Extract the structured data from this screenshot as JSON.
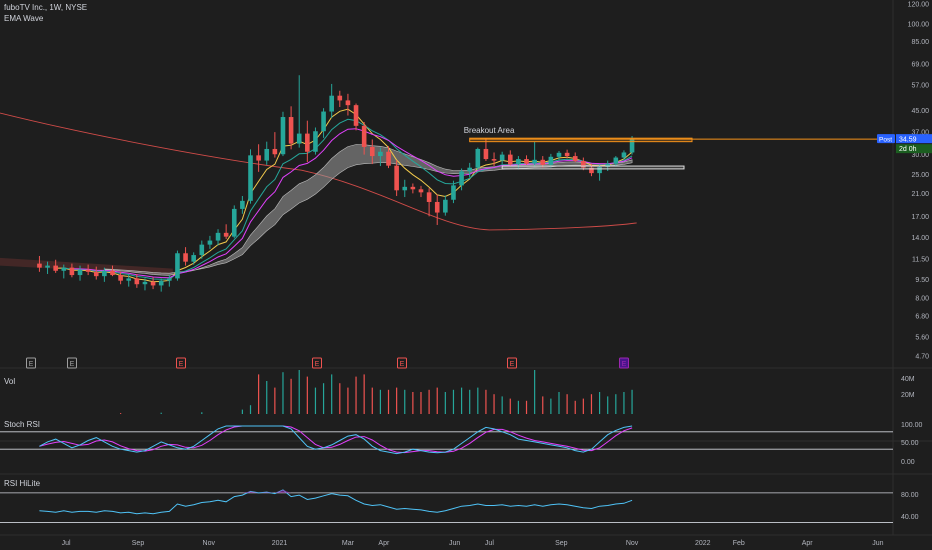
{
  "header": {
    "symbol_line": "fuboTV Inc., 1W, NYSE",
    "indicator": "EMA Wave"
  },
  "annotation": {
    "breakout_label": "Breakout Area"
  },
  "price_badges": {
    "post_label": "Post",
    "last_price": "34.59",
    "countdown": "2d 0h"
  },
  "panes": {
    "vol_label": "Vol",
    "stoch_label": "Stoch RSI",
    "rsi_label": "RSI HiLite"
  },
  "price_axis_ticks": [
    "120.00",
    "100.00",
    "85.00",
    "69.00",
    "57.00",
    "45.00",
    "37.00",
    "30.00",
    "25.00",
    "21.00",
    "17.00",
    "14.00",
    "11.50",
    "9.50",
    "8.00",
    "6.80",
    "5.60",
    "4.70"
  ],
  "vol_axis_ticks": [
    "40M",
    "20M"
  ],
  "stoch_axis_ticks": [
    "100.00",
    "50.00",
    "0.00"
  ],
  "rsi_axis_ticks": [
    "80.00",
    "40.00"
  ],
  "time_axis_ticks": [
    "Jul",
    "Sep",
    "Nov",
    "2021",
    "Mar",
    "Apr",
    "Jun",
    "Jul",
    "Sep",
    "Nov",
    "2022",
    "Feb",
    "Apr",
    "Jun"
  ],
  "events": [
    "E",
    "E",
    "E",
    "E",
    "E",
    "E",
    "E"
  ],
  "colors": {
    "up": "#26a69a",
    "down": "#ef5350",
    "breakout": "#f7931a",
    "ema_fast": "#f2c94c",
    "ema_mid": "#26a69a",
    "ema_slow": "#e040fb",
    "ma_long": "#ef5350",
    "stoch_k": "#4fc3f7",
    "stoch_d": "#e040fb",
    "rsi": "#4fc3f7"
  },
  "chart_data": {
    "type": "candlestick",
    "timeframe": "1W",
    "y_scale": "log",
    "ylim": [
      4.5,
      125
    ],
    "x_range": [
      "2020-06-08",
      "2022-06-13"
    ],
    "candles": [
      {
        "d": "2020-06-08",
        "o": 11.0,
        "h": 11.8,
        "l": 10.2,
        "c": 10.6
      },
      {
        "d": "2020-06-15",
        "o": 10.6,
        "h": 11.2,
        "l": 10.0,
        "c": 10.8
      },
      {
        "d": "2020-06-22",
        "o": 10.8,
        "h": 11.4,
        "l": 10.1,
        "c": 10.3
      },
      {
        "d": "2020-06-29",
        "o": 10.3,
        "h": 10.9,
        "l": 9.6,
        "c": 10.6
      },
      {
        "d": "2020-07-06",
        "o": 10.6,
        "h": 11.0,
        "l": 9.7,
        "c": 9.9
      },
      {
        "d": "2020-07-13",
        "o": 9.9,
        "h": 10.8,
        "l": 9.4,
        "c": 10.4
      },
      {
        "d": "2020-07-20",
        "o": 10.4,
        "h": 10.9,
        "l": 9.9,
        "c": 10.2
      },
      {
        "d": "2020-07-27",
        "o": 10.2,
        "h": 10.7,
        "l": 9.5,
        "c": 9.8
      },
      {
        "d": "2020-08-03",
        "o": 9.8,
        "h": 10.6,
        "l": 9.3,
        "c": 10.3
      },
      {
        "d": "2020-08-10",
        "o": 10.3,
        "h": 10.8,
        "l": 9.8,
        "c": 9.9
      },
      {
        "d": "2020-08-17",
        "o": 9.9,
        "h": 10.2,
        "l": 9.1,
        "c": 9.4
      },
      {
        "d": "2020-08-24",
        "o": 9.4,
        "h": 9.9,
        "l": 8.9,
        "c": 9.6
      },
      {
        "d": "2020-08-31",
        "o": 9.6,
        "h": 10.0,
        "l": 8.8,
        "c": 9.1
      },
      {
        "d": "2020-09-07",
        "o": 9.1,
        "h": 9.6,
        "l": 8.6,
        "c": 9.3
      },
      {
        "d": "2020-09-14",
        "o": 9.3,
        "h": 9.7,
        "l": 8.7,
        "c": 9.0
      },
      {
        "d": "2020-09-21",
        "o": 9.0,
        "h": 9.6,
        "l": 8.5,
        "c": 9.4
      },
      {
        "d": "2020-09-28",
        "o": 9.4,
        "h": 9.9,
        "l": 8.9,
        "c": 9.6
      },
      {
        "d": "2020-10-05",
        "o": 9.6,
        "h": 12.4,
        "l": 9.4,
        "c": 12.1
      },
      {
        "d": "2020-10-12",
        "o": 12.1,
        "h": 12.8,
        "l": 10.8,
        "c": 11.2
      },
      {
        "d": "2020-10-19",
        "o": 11.2,
        "h": 12.2,
        "l": 10.9,
        "c": 11.9
      },
      {
        "d": "2020-10-26",
        "o": 11.9,
        "h": 13.6,
        "l": 11.5,
        "c": 13.1
      },
      {
        "d": "2020-11-02",
        "o": 13.1,
        "h": 14.2,
        "l": 12.6,
        "c": 13.6
      },
      {
        "d": "2020-11-09",
        "o": 13.6,
        "h": 15.1,
        "l": 13.0,
        "c": 14.6
      },
      {
        "d": "2020-11-16",
        "o": 14.6,
        "h": 15.8,
        "l": 13.8,
        "c": 14.1
      },
      {
        "d": "2020-11-23",
        "o": 14.1,
        "h": 18.8,
        "l": 13.9,
        "c": 18.2
      },
      {
        "d": "2020-11-30",
        "o": 18.2,
        "h": 20.5,
        "l": 17.4,
        "c": 19.6
      },
      {
        "d": "2020-12-07",
        "o": 19.6,
        "h": 31.5,
        "l": 19.1,
        "c": 29.8
      },
      {
        "d": "2020-12-14",
        "o": 29.8,
        "h": 33.0,
        "l": 25.6,
        "c": 28.4
      },
      {
        "d": "2020-12-21",
        "o": 28.4,
        "h": 33.8,
        "l": 27.3,
        "c": 31.6
      },
      {
        "d": "2020-12-28",
        "o": 31.6,
        "h": 36.9,
        "l": 29.2,
        "c": 30.1
      },
      {
        "d": "2021-01-04",
        "o": 30.1,
        "h": 44.5,
        "l": 29.6,
        "c": 42.4
      },
      {
        "d": "2021-01-11",
        "o": 42.4,
        "h": 46.8,
        "l": 31.5,
        "c": 33.2
      },
      {
        "d": "2021-01-18",
        "o": 33.2,
        "h": 62.3,
        "l": 32.0,
        "c": 36.4
      },
      {
        "d": "2021-01-25",
        "o": 36.4,
        "h": 41.0,
        "l": 28.0,
        "c": 30.8
      },
      {
        "d": "2021-02-01",
        "o": 30.8,
        "h": 38.5,
        "l": 30.0,
        "c": 37.2
      },
      {
        "d": "2021-02-08",
        "o": 37.2,
        "h": 46.0,
        "l": 35.0,
        "c": 44.6
      },
      {
        "d": "2021-02-15",
        "o": 44.6,
        "h": 57.5,
        "l": 42.0,
        "c": 51.6
      },
      {
        "d": "2021-02-22",
        "o": 51.6,
        "h": 54.0,
        "l": 46.5,
        "c": 49.4
      },
      {
        "d": "2021-03-01",
        "o": 49.4,
        "h": 52.5,
        "l": 43.0,
        "c": 47.3
      },
      {
        "d": "2021-03-08",
        "o": 47.3,
        "h": 48.0,
        "l": 37.5,
        "c": 39.1
      },
      {
        "d": "2021-03-15",
        "o": 39.1,
        "h": 40.5,
        "l": 30.0,
        "c": 32.2
      },
      {
        "d": "2021-03-22",
        "o": 32.2,
        "h": 34.5,
        "l": 27.5,
        "c": 29.6
      },
      {
        "d": "2021-03-29",
        "o": 29.6,
        "h": 32.0,
        "l": 27.0,
        "c": 30.8
      },
      {
        "d": "2021-04-05",
        "o": 30.8,
        "h": 32.4,
        "l": 26.5,
        "c": 27.1
      },
      {
        "d": "2021-04-12",
        "o": 27.1,
        "h": 28.5,
        "l": 20.5,
        "c": 21.6
      },
      {
        "d": "2021-04-19",
        "o": 21.6,
        "h": 23.8,
        "l": 20.3,
        "c": 22.3
      },
      {
        "d": "2021-04-26",
        "o": 22.3,
        "h": 23.0,
        "l": 21.0,
        "c": 21.8
      },
      {
        "d": "2021-05-03",
        "o": 21.8,
        "h": 22.5,
        "l": 20.3,
        "c": 21.2
      },
      {
        "d": "2021-05-10",
        "o": 21.2,
        "h": 22.0,
        "l": 17.0,
        "c": 19.4
      },
      {
        "d": "2021-05-17",
        "o": 19.4,
        "h": 20.8,
        "l": 15.7,
        "c": 17.6
      },
      {
        "d": "2021-05-24",
        "o": 17.6,
        "h": 20.6,
        "l": 17.1,
        "c": 19.8
      },
      {
        "d": "2021-05-31",
        "o": 19.8,
        "h": 23.6,
        "l": 19.2,
        "c": 22.6
      },
      {
        "d": "2021-06-07",
        "o": 22.6,
        "h": 26.4,
        "l": 21.6,
        "c": 25.7
      },
      {
        "d": "2021-06-14",
        "o": 25.7,
        "h": 27.8,
        "l": 24.3,
        "c": 26.6
      },
      {
        "d": "2021-06-21",
        "o": 26.6,
        "h": 32.0,
        "l": 26.0,
        "c": 31.6
      },
      {
        "d": "2021-06-28",
        "o": 31.6,
        "h": 34.8,
        "l": 28.3,
        "c": 28.8
      },
      {
        "d": "2021-07-05",
        "o": 28.8,
        "h": 30.6,
        "l": 27.0,
        "c": 28.4
      },
      {
        "d": "2021-07-12",
        "o": 28.4,
        "h": 30.8,
        "l": 27.5,
        "c": 30.0
      },
      {
        "d": "2021-07-19",
        "o": 30.0,
        "h": 31.2,
        "l": 27.0,
        "c": 27.4
      },
      {
        "d": "2021-07-26",
        "o": 27.4,
        "h": 29.6,
        "l": 26.2,
        "c": 28.8
      },
      {
        "d": "2021-08-02",
        "o": 28.8,
        "h": 29.8,
        "l": 27.3,
        "c": 27.6
      },
      {
        "d": "2021-08-09",
        "o": 27.6,
        "h": 33.8,
        "l": 26.8,
        "c": 28.6
      },
      {
        "d": "2021-08-16",
        "o": 28.6,
        "h": 29.6,
        "l": 26.6,
        "c": 27.3
      },
      {
        "d": "2021-08-23",
        "o": 27.3,
        "h": 30.2,
        "l": 26.6,
        "c": 29.4
      },
      {
        "d": "2021-08-30",
        "o": 29.4,
        "h": 31.0,
        "l": 28.4,
        "c": 30.5
      },
      {
        "d": "2021-09-06",
        "o": 30.5,
        "h": 31.4,
        "l": 29.0,
        "c": 29.6
      },
      {
        "d": "2021-09-13",
        "o": 29.6,
        "h": 30.6,
        "l": 28.0,
        "c": 28.3
      },
      {
        "d": "2021-09-20",
        "o": 28.3,
        "h": 29.2,
        "l": 26.0,
        "c": 26.6
      },
      {
        "d": "2021-09-27",
        "o": 26.6,
        "h": 27.6,
        "l": 24.6,
        "c": 25.3
      },
      {
        "d": "2021-10-04",
        "o": 25.3,
        "h": 27.3,
        "l": 23.6,
        "c": 26.8
      },
      {
        "d": "2021-10-11",
        "o": 26.8,
        "h": 28.4,
        "l": 25.8,
        "c": 27.6
      },
      {
        "d": "2021-10-18",
        "o": 27.6,
        "h": 29.6,
        "l": 26.9,
        "c": 29.2
      },
      {
        "d": "2021-10-25",
        "o": 29.2,
        "h": 31.2,
        "l": 28.6,
        "c": 30.6
      },
      {
        "d": "2021-11-01",
        "o": 30.6,
        "h": 35.6,
        "l": 30.0,
        "c": 34.59
      }
    ],
    "ema_fast_last": 31.0,
    "ma_long_last": 16.0,
    "breakout_level": [
      33.8,
      34.9
    ],
    "support_band": [
      26.3,
      27.0
    ],
    "stoch_rsi_levels": [
      80,
      20
    ],
    "rsi_levels": [
      70,
      30
    ]
  }
}
